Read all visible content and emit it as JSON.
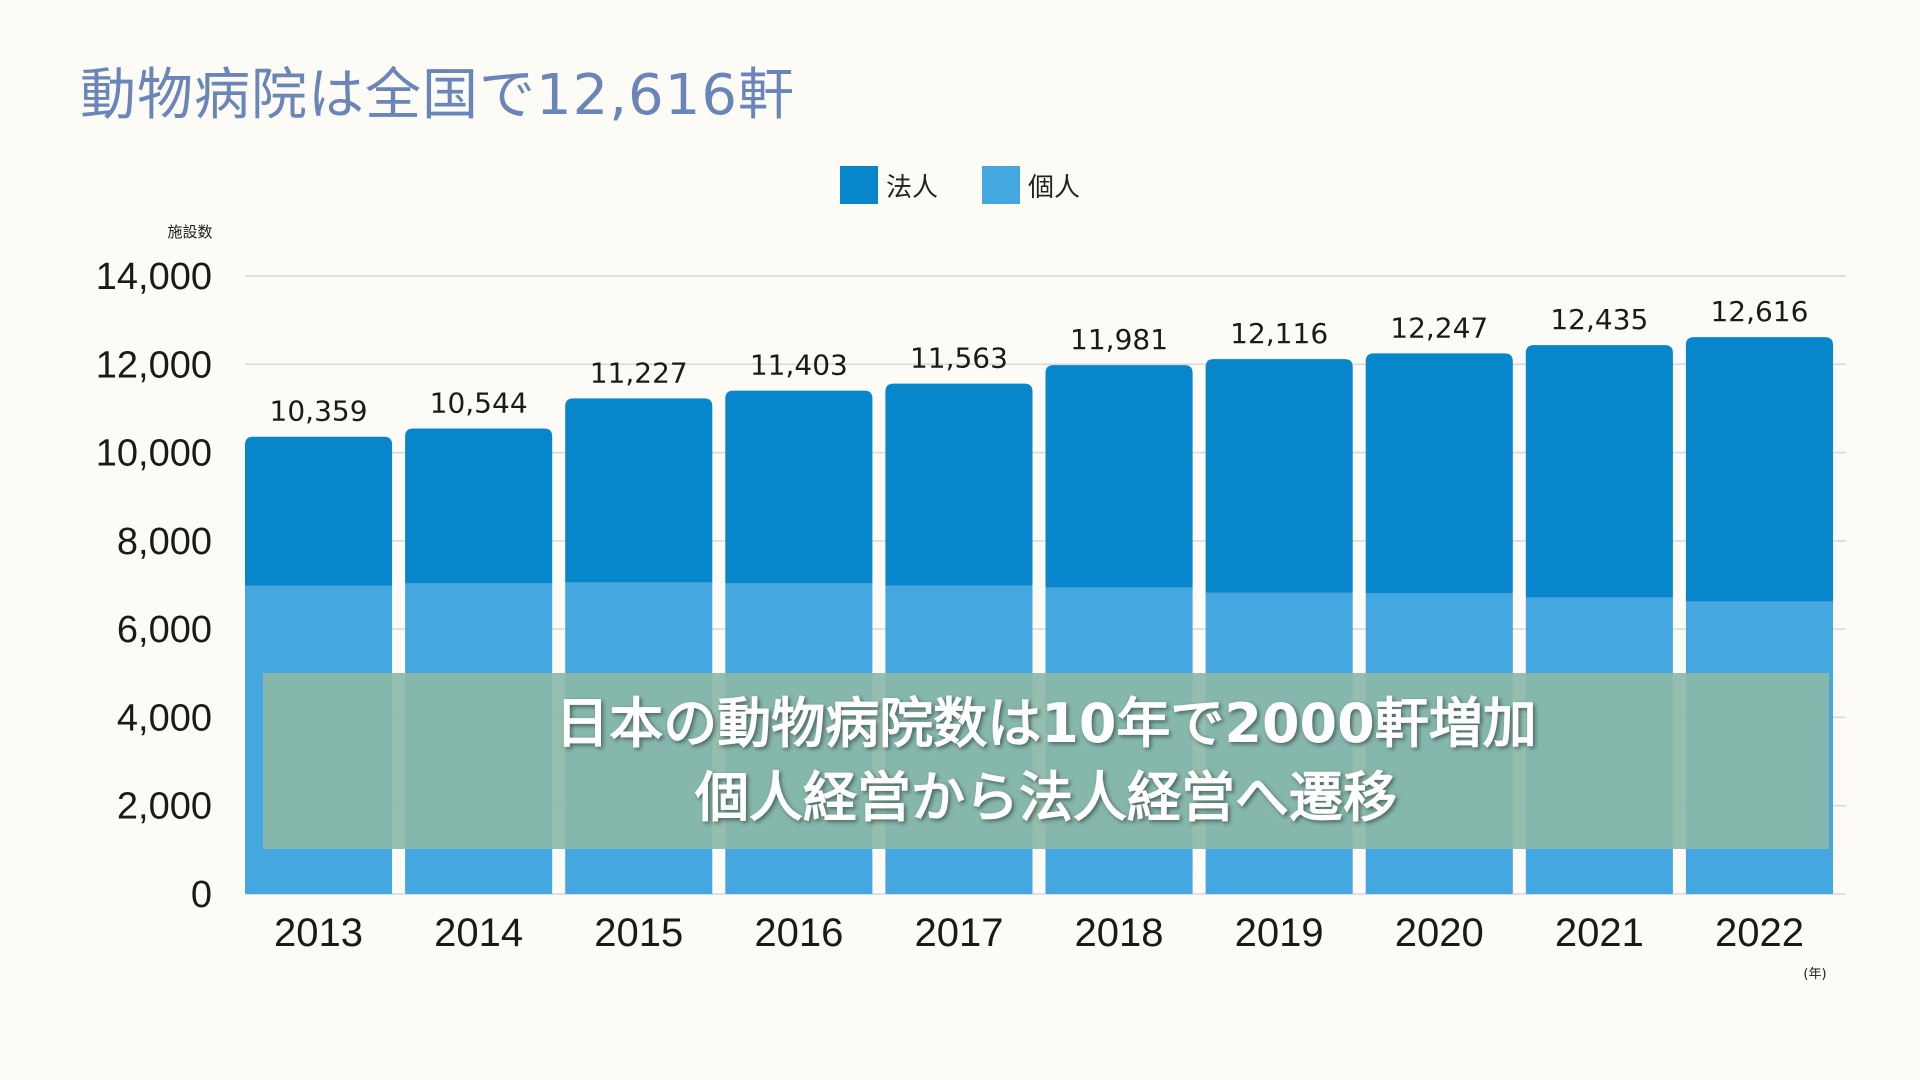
{
  "title": "動物病院は全国で12,616軒",
  "legend": [
    {
      "label": "法人",
      "color": "#0786cc"
    },
    {
      "label": "個人",
      "color": "#45a7e0"
    }
  ],
  "overlay": {
    "line1": "日本の動物病院数は10年で2000軒増加",
    "line2": "個人経営から法人経営へ遷移"
  },
  "chart_data": {
    "type": "bar",
    "stacked": true,
    "categories": [
      "2013",
      "2014",
      "2015",
      "2016",
      "2017",
      "2018",
      "2019",
      "2020",
      "2021",
      "2022"
    ],
    "series": [
      {
        "name": "個人",
        "color": "#45a7e0",
        "values": [
          6980,
          7030,
          7050,
          7030,
          6990,
          6940,
          6830,
          6820,
          6710,
          6620
        ]
      },
      {
        "name": "法人",
        "color": "#0786cc",
        "values": [
          3379,
          3514,
          4177,
          4373,
          4573,
          5041,
          5286,
          5427,
          5725,
          5996
        ]
      }
    ],
    "totals": [
      "10,359",
      "10,544",
      "11,227",
      "11,403",
      "11,563",
      "11,981",
      "12,116",
      "12,247",
      "12,435",
      "12,616"
    ],
    "total_values": [
      10359,
      10544,
      11227,
      11403,
      11563,
      11981,
      12116,
      12247,
      12435,
      12616
    ],
    "ylabel": "施設数",
    "xunit": "(年)",
    "ylim": [
      0,
      14000
    ],
    "yticks": [
      "0",
      "2,000",
      "4,000",
      "6,000",
      "8,000",
      "10,000",
      "12,000",
      "14,000"
    ],
    "ytick_values": [
      0,
      2000,
      4000,
      6000,
      8000,
      10000,
      12000,
      14000
    ],
    "grid": true,
    "legend_position": "top-center"
  }
}
